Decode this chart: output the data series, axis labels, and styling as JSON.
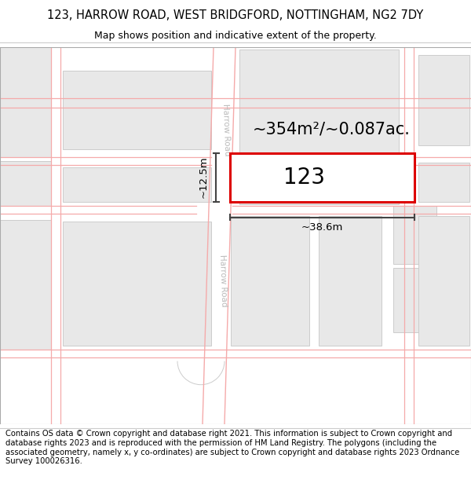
{
  "title_line1": "123, HARROW ROAD, WEST BRIDGFORD, NOTTINGHAM, NG2 7DY",
  "title_line2": "Map shows position and indicative extent of the property.",
  "footer_text": "Contains OS data © Crown copyright and database right 2021. This information is subject to Crown copyright and database rights 2023 and is reproduced with the permission of HM Land Registry. The polygons (including the associated geometry, namely x, y co-ordinates) are subject to Crown copyright and database rights 2023 Ordnance Survey 100026316.",
  "bg_color": "#ffffff",
  "map_bg": "#ffffff",
  "road_fill": "#ffffff",
  "road_line": "#f5aaaa",
  "road_edge": "#cccccc",
  "building_fill": "#e8e8e8",
  "building_edge": "#cccccc",
  "property_fill": "#ffffff",
  "property_edge": "#dd0000",
  "property_label": "123",
  "area_text": "~354m²/~0.087ac.",
  "width_text": "~38.6m",
  "height_text": "~12.5m",
  "road_label": "Harrow Road",
  "title_fontsize": 10.5,
  "subtitle_fontsize": 9,
  "footer_fontsize": 7.2,
  "label_fontsize": 20,
  "area_fontsize": 15,
  "measure_fontsize": 9.5,
  "road_label_fontsize": 7.5,
  "map_border_color": "#aaaaaa",
  "measure_color": "#444444"
}
